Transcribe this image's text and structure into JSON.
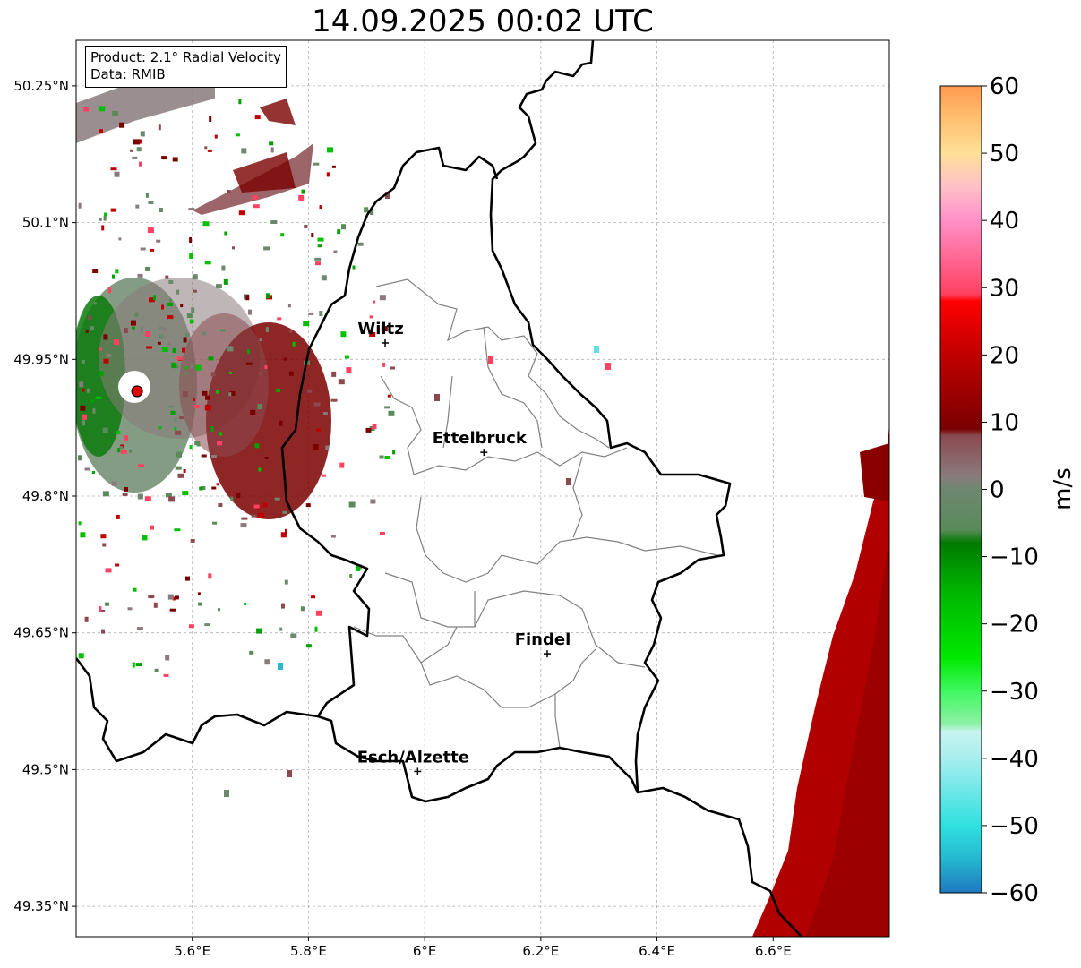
{
  "title": "14.09.2025 00:02 UTC",
  "info": {
    "product": "Product: 2.1° Radial Velocity",
    "data": "Data: RMIB"
  },
  "map": {
    "lon_range": [
      5.4,
      6.8
    ],
    "lat_range": [
      49.3167,
      50.3
    ],
    "lat_ticks": [
      {
        "value": 50.25,
        "label": "50.25°N"
      },
      {
        "value": 50.1,
        "label": "50.1°N"
      },
      {
        "value": 49.95,
        "label": "49.95°N"
      },
      {
        "value": 49.8,
        "label": "49.8°N"
      },
      {
        "value": 49.65,
        "label": "49.65°N"
      },
      {
        "value": 49.5,
        "label": "49.5°N"
      },
      {
        "value": 49.35,
        "label": "49.35°N"
      }
    ],
    "lon_ticks": [
      {
        "value": 5.6,
        "label": "5.6°E"
      },
      {
        "value": 5.8,
        "label": "5.8°E"
      },
      {
        "value": 6.0,
        "label": "6°E"
      },
      {
        "value": 6.2,
        "label": "6.2°E"
      },
      {
        "value": 6.4,
        "label": "6.4°E"
      },
      {
        "value": 6.6,
        "label": "6.6°E"
      }
    ],
    "cities": [
      {
        "name": "Wiltz",
        "lon": 5.932,
        "lat": 49.968
      },
      {
        "name": "Ettelbruck",
        "lon": 6.102,
        "lat": 49.848
      },
      {
        "name": "Findel",
        "lon": 6.211,
        "lat": 49.627
      },
      {
        "name": "Esch/Alzette",
        "lon": 5.988,
        "lat": 49.498
      }
    ],
    "radar_site": {
      "lon": 5.505,
      "lat": 49.915,
      "color": "#e00000"
    }
  },
  "colorbar": {
    "label": "m/s",
    "min": -60,
    "max": 60,
    "ticks": [
      {
        "value": 60,
        "label": "60"
      },
      {
        "value": 50,
        "label": "50"
      },
      {
        "value": 40,
        "label": "40"
      },
      {
        "value": 30,
        "label": "30"
      },
      {
        "value": 20,
        "label": "20"
      },
      {
        "value": 10,
        "label": "10"
      },
      {
        "value": 0,
        "label": "0"
      },
      {
        "value": -10,
        "label": "−10"
      },
      {
        "value": -20,
        "label": "−20"
      },
      {
        "value": -30,
        "label": "−30"
      },
      {
        "value": -40,
        "label": "−40"
      },
      {
        "value": -50,
        "label": "−50"
      },
      {
        "value": -60,
        "label": "−60"
      }
    ],
    "stops": [
      {
        "v": -60,
        "c": "#1f78c0"
      },
      {
        "v": -55,
        "c": "#25b8d0"
      },
      {
        "v": -50,
        "c": "#30e0e0"
      },
      {
        "v": -40,
        "c": "#a8eeee"
      },
      {
        "v": -36,
        "c": "#c8f4f0"
      },
      {
        "v": -35,
        "c": "#90f0a8"
      },
      {
        "v": -30,
        "c": "#40f860"
      },
      {
        "v": -25,
        "c": "#00e800"
      },
      {
        "v": -15,
        "c": "#00b400"
      },
      {
        "v": -8,
        "c": "#007a00"
      },
      {
        "v": -6,
        "c": "#5a8a5a"
      },
      {
        "v": 0,
        "c": "#6e8870"
      },
      {
        "v": 2,
        "c": "#8a7a7c"
      },
      {
        "v": 8,
        "c": "#8a4a50"
      },
      {
        "v": 9,
        "c": "#7a0000"
      },
      {
        "v": 20,
        "c": "#c00000"
      },
      {
        "v": 28,
        "c": "#ff0000"
      },
      {
        "v": 29,
        "c": "#ff4060"
      },
      {
        "v": 40,
        "c": "#ff90c8"
      },
      {
        "v": 45,
        "c": "#ffc0c8"
      },
      {
        "v": 50,
        "c": "#ffe098"
      },
      {
        "v": 55,
        "c": "#ffc070"
      },
      {
        "v": 60,
        "c": "#ff9a50"
      }
    ]
  }
}
